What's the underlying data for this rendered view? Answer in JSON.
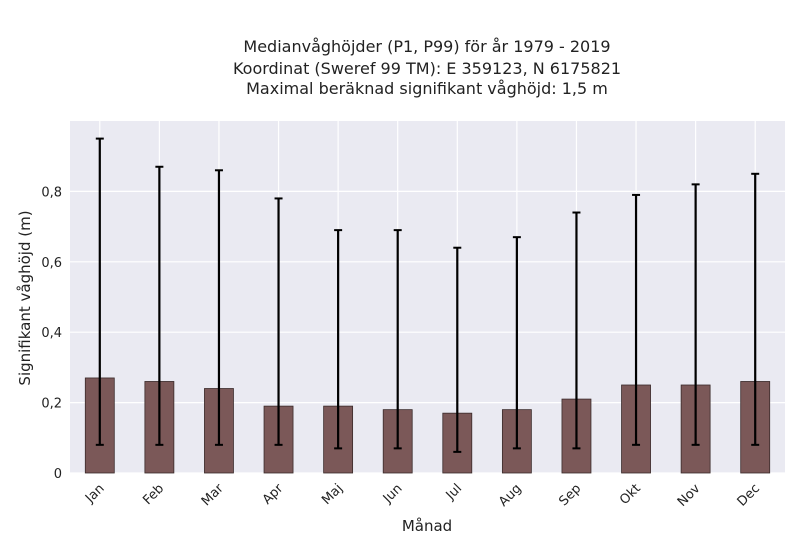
{
  "chart_data": {
    "type": "bar",
    "title_lines": [
      "Medianvåghöjder (P1, P99) för år 1979 - 2019",
      "Koordinat (Sweref 99 TM): E 359123, N 6175821",
      "Maximal beräknad signifikant våghöjd: 1,5 m"
    ],
    "xlabel": "Månad",
    "ylabel": "Signifikant våghöjd (m)",
    "categories": [
      "Jan",
      "Feb",
      "Mar",
      "Apr",
      "Maj",
      "Jun",
      "Jul",
      "Aug",
      "Sep",
      "Okt",
      "Nov",
      "Dec"
    ],
    "series": [
      {
        "values": [
          0.27,
          0.26,
          0.24,
          0.19,
          0.19,
          0.18,
          0.17,
          0.18,
          0.21,
          0.25,
          0.25,
          0.26
        ],
        "p1": [
          0.08,
          0.08,
          0.08,
          0.08,
          0.07,
          0.07,
          0.06,
          0.07,
          0.07,
          0.08,
          0.08,
          0.08
        ],
        "p99": [
          0.95,
          0.87,
          0.86,
          0.78,
          0.69,
          0.69,
          0.64,
          0.67,
          0.74,
          0.79,
          0.82,
          0.85
        ]
      }
    ],
    "ylim": [
      0,
      1.0
    ],
    "yticks": [
      0,
      0.2,
      0.4,
      0.6,
      0.8
    ],
    "ytick_labels": [
      "0",
      "0,2",
      "0,4",
      "0,6",
      "0,8"
    ],
    "grid": true,
    "colors": {
      "bar": "#7b5858",
      "bar_edge": "#3a2a2a",
      "plot_bg": "#eaeaf2",
      "grid": "#ffffff",
      "errorbar": "#000000"
    }
  }
}
